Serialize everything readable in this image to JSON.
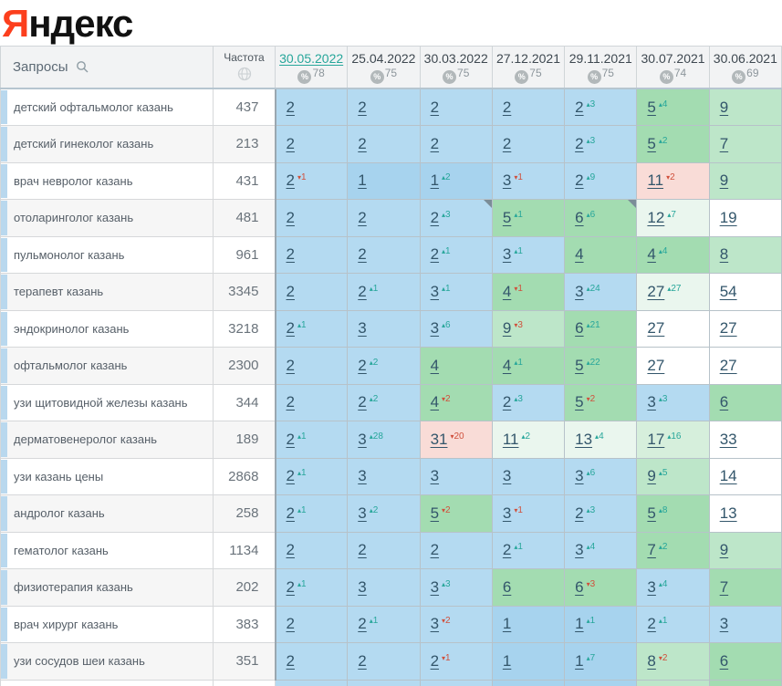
{
  "logo": {
    "ya": "Я",
    "rest": "ндекс"
  },
  "colors": {
    "brand_red": "#fc3f1d",
    "selected_date_teal": "#26a69a",
    "change_up": "#26a69a",
    "change_down": "#d0503c",
    "cell_blue": "#b4daf1",
    "cell_blue_top1": "#a7d3ee",
    "cell_green": "#a3dcb1",
    "cell_light_green": "#bde6c9",
    "cell_very_light_green": "#eaf6ee",
    "cell_pink": "#f9dcd7",
    "row_accent_blue": "#b9d8ee"
  },
  "table": {
    "queries_header": "Запросы",
    "frequency_header": "Частота",
    "percent_symbol": "%",
    "dates": [
      {
        "label": "30.05.2022",
        "percent": "78",
        "selected": true
      },
      {
        "label": "25.04.2022",
        "percent": "75",
        "selected": false
      },
      {
        "label": "30.03.2022",
        "percent": "75",
        "selected": false
      },
      {
        "label": "27.12.2021",
        "percent": "75",
        "selected": false
      },
      {
        "label": "29.11.2021",
        "percent": "75",
        "selected": false
      },
      {
        "label": "30.07.2021",
        "percent": "74",
        "selected": false
      },
      {
        "label": "30.06.2021",
        "percent": "69",
        "selected": false
      }
    ],
    "rows": [
      {
        "query": "детский офтальмолог казань",
        "frequency": "437",
        "cells": [
          {
            "pos": "2",
            "bg": "blue"
          },
          {
            "pos": "2",
            "bg": "blue"
          },
          {
            "pos": "2",
            "bg": "blue"
          },
          {
            "pos": "2",
            "bg": "blue"
          },
          {
            "pos": "2",
            "change": "3",
            "dir": "up",
            "bg": "blue"
          },
          {
            "pos": "5",
            "change": "4",
            "dir": "up",
            "bg": "green"
          },
          {
            "pos": "9",
            "bg": "lgreen"
          }
        ]
      },
      {
        "query": "детский гинеколог казань",
        "frequency": "213",
        "cells": [
          {
            "pos": "2",
            "bg": "blue"
          },
          {
            "pos": "2",
            "bg": "blue"
          },
          {
            "pos": "2",
            "bg": "blue"
          },
          {
            "pos": "2",
            "bg": "blue"
          },
          {
            "pos": "2",
            "change": "3",
            "dir": "up",
            "bg": "blue"
          },
          {
            "pos": "5",
            "change": "2",
            "dir": "up",
            "bg": "green"
          },
          {
            "pos": "7",
            "bg": "lgreen"
          }
        ]
      },
      {
        "query": "врач невролог казань",
        "frequency": "431",
        "cells": [
          {
            "pos": "2",
            "change": "1",
            "dir": "down",
            "bg": "blue"
          },
          {
            "pos": "1",
            "bg": "blue1"
          },
          {
            "pos": "1",
            "change": "2",
            "dir": "up",
            "bg": "blue1"
          },
          {
            "pos": "3",
            "change": "1",
            "dir": "down",
            "bg": "blue"
          },
          {
            "pos": "2",
            "change": "9",
            "dir": "up",
            "bg": "blue"
          },
          {
            "pos": "11",
            "change": "2",
            "dir": "down",
            "bg": "pink"
          },
          {
            "pos": "9",
            "bg": "lgreen"
          }
        ]
      },
      {
        "query": "отоларинголог казань",
        "frequency": "481",
        "cells": [
          {
            "pos": "2",
            "bg": "blue"
          },
          {
            "pos": "2",
            "bg": "blue"
          },
          {
            "pos": "2",
            "change": "3",
            "dir": "up",
            "bg": "blue",
            "note": true
          },
          {
            "pos": "5",
            "change": "1",
            "dir": "up",
            "bg": "green"
          },
          {
            "pos": "6",
            "change": "6",
            "dir": "up",
            "bg": "green",
            "note": true
          },
          {
            "pos": "12",
            "change": "7",
            "dir": "up",
            "bg": "vlgreen"
          },
          {
            "pos": "19",
            "bg": "white"
          }
        ]
      },
      {
        "query": "пульмонолог казань",
        "frequency": "961",
        "cells": [
          {
            "pos": "2",
            "bg": "blue"
          },
          {
            "pos": "2",
            "bg": "blue"
          },
          {
            "pos": "2",
            "change": "1",
            "dir": "up",
            "bg": "blue"
          },
          {
            "pos": "3",
            "change": "1",
            "dir": "up",
            "bg": "blue"
          },
          {
            "pos": "4",
            "bg": "green"
          },
          {
            "pos": "4",
            "change": "4",
            "dir": "up",
            "bg": "green"
          },
          {
            "pos": "8",
            "bg": "lgreen"
          }
        ]
      },
      {
        "query": "терапевт казань",
        "frequency": "3345",
        "cells": [
          {
            "pos": "2",
            "bg": "blue"
          },
          {
            "pos": "2",
            "change": "1",
            "dir": "up",
            "bg": "blue"
          },
          {
            "pos": "3",
            "change": "1",
            "dir": "up",
            "bg": "blue"
          },
          {
            "pos": "4",
            "change": "1",
            "dir": "down",
            "bg": "green"
          },
          {
            "pos": "3",
            "change": "24",
            "dir": "up",
            "bg": "blue"
          },
          {
            "pos": "27",
            "change": "27",
            "dir": "up",
            "bg": "vlgreen"
          },
          {
            "pos": "54",
            "bg": "white"
          }
        ]
      },
      {
        "query": "эндокринолог казань",
        "frequency": "3218",
        "cells": [
          {
            "pos": "2",
            "change": "1",
            "dir": "up",
            "bg": "blue"
          },
          {
            "pos": "3",
            "bg": "blue"
          },
          {
            "pos": "3",
            "change": "6",
            "dir": "up",
            "bg": "blue"
          },
          {
            "pos": "9",
            "change": "3",
            "dir": "down",
            "bg": "lgreen"
          },
          {
            "pos": "6",
            "change": "21",
            "dir": "up",
            "bg": "green"
          },
          {
            "pos": "27",
            "bg": "white"
          },
          {
            "pos": "27",
            "bg": "white"
          }
        ]
      },
      {
        "query": "офтальмолог казань",
        "frequency": "2300",
        "cells": [
          {
            "pos": "2",
            "bg": "blue"
          },
          {
            "pos": "2",
            "change": "2",
            "dir": "up",
            "bg": "blue"
          },
          {
            "pos": "4",
            "bg": "green"
          },
          {
            "pos": "4",
            "change": "1",
            "dir": "up",
            "bg": "green"
          },
          {
            "pos": "5",
            "change": "22",
            "dir": "up",
            "bg": "green"
          },
          {
            "pos": "27",
            "bg": "white"
          },
          {
            "pos": "27",
            "bg": "white"
          }
        ]
      },
      {
        "query": "узи щитовидной железы казань",
        "frequency": "344",
        "cells": [
          {
            "pos": "2",
            "bg": "blue"
          },
          {
            "pos": "2",
            "change": "2",
            "dir": "up",
            "bg": "blue"
          },
          {
            "pos": "4",
            "change": "2",
            "dir": "down",
            "bg": "green"
          },
          {
            "pos": "2",
            "change": "3",
            "dir": "up",
            "bg": "blue"
          },
          {
            "pos": "5",
            "change": "2",
            "dir": "down",
            "bg": "green"
          },
          {
            "pos": "3",
            "change": "3",
            "dir": "up",
            "bg": "blue"
          },
          {
            "pos": "6",
            "bg": "green"
          }
        ]
      },
      {
        "query": "дерматовенеролог казань",
        "frequency": "189",
        "cells": [
          {
            "pos": "2",
            "change": "1",
            "dir": "up",
            "bg": "blue"
          },
          {
            "pos": "3",
            "change": "28",
            "dir": "up",
            "bg": "blue"
          },
          {
            "pos": "31",
            "change": "20",
            "dir": "down",
            "bg": "pink"
          },
          {
            "pos": "11",
            "change": "2",
            "dir": "up",
            "bg": "vlgreen"
          },
          {
            "pos": "13",
            "change": "4",
            "dir": "up",
            "bg": "vlgreen"
          },
          {
            "pos": "17",
            "change": "16",
            "dir": "up",
            "bg": "lgreen2"
          },
          {
            "pos": "33",
            "bg": "white"
          }
        ]
      },
      {
        "query": "узи казань цены",
        "frequency": "2868",
        "cells": [
          {
            "pos": "2",
            "change": "1",
            "dir": "up",
            "bg": "blue"
          },
          {
            "pos": "3",
            "bg": "blue"
          },
          {
            "pos": "3",
            "bg": "blue"
          },
          {
            "pos": "3",
            "bg": "blue"
          },
          {
            "pos": "3",
            "change": "6",
            "dir": "up",
            "bg": "blue"
          },
          {
            "pos": "9",
            "change": "5",
            "dir": "up",
            "bg": "lgreen"
          },
          {
            "pos": "14",
            "bg": "white"
          }
        ]
      },
      {
        "query": "андролог казань",
        "frequency": "258",
        "cells": [
          {
            "pos": "2",
            "change": "1",
            "dir": "up",
            "bg": "blue"
          },
          {
            "pos": "3",
            "change": "2",
            "dir": "up",
            "bg": "blue"
          },
          {
            "pos": "5",
            "change": "2",
            "dir": "down",
            "bg": "green"
          },
          {
            "pos": "3",
            "change": "1",
            "dir": "down",
            "bg": "blue"
          },
          {
            "pos": "2",
            "change": "3",
            "dir": "up",
            "bg": "blue"
          },
          {
            "pos": "5",
            "change": "8",
            "dir": "up",
            "bg": "green"
          },
          {
            "pos": "13",
            "bg": "white"
          }
        ]
      },
      {
        "query": "гематолог казань",
        "frequency": "1134",
        "cells": [
          {
            "pos": "2",
            "bg": "blue"
          },
          {
            "pos": "2",
            "bg": "blue"
          },
          {
            "pos": "2",
            "bg": "blue"
          },
          {
            "pos": "2",
            "change": "1",
            "dir": "up",
            "bg": "blue"
          },
          {
            "pos": "3",
            "change": "4",
            "dir": "up",
            "bg": "blue"
          },
          {
            "pos": "7",
            "change": "2",
            "dir": "up",
            "bg": "green"
          },
          {
            "pos": "9",
            "bg": "lgreen"
          }
        ]
      },
      {
        "query": "физиотерапия казань",
        "frequency": "202",
        "cells": [
          {
            "pos": "2",
            "change": "1",
            "dir": "up",
            "bg": "blue"
          },
          {
            "pos": "3",
            "bg": "blue"
          },
          {
            "pos": "3",
            "change": "3",
            "dir": "up",
            "bg": "blue"
          },
          {
            "pos": "6",
            "bg": "green"
          },
          {
            "pos": "6",
            "change": "3",
            "dir": "down",
            "bg": "green"
          },
          {
            "pos": "3",
            "change": "4",
            "dir": "up",
            "bg": "blue"
          },
          {
            "pos": "7",
            "bg": "green"
          }
        ]
      },
      {
        "query": "врач хирург казань",
        "frequency": "383",
        "cells": [
          {
            "pos": "2",
            "bg": "blue"
          },
          {
            "pos": "2",
            "change": "1",
            "dir": "up",
            "bg": "blue"
          },
          {
            "pos": "3",
            "change": "2",
            "dir": "down",
            "bg": "blue"
          },
          {
            "pos": "1",
            "bg": "blue1"
          },
          {
            "pos": "1",
            "change": "1",
            "dir": "up",
            "bg": "blue1"
          },
          {
            "pos": "2",
            "change": "1",
            "dir": "up",
            "bg": "blue"
          },
          {
            "pos": "3",
            "bg": "blue"
          }
        ]
      },
      {
        "query": "узи сосудов шеи казань",
        "frequency": "351",
        "cells": [
          {
            "pos": "2",
            "bg": "blue"
          },
          {
            "pos": "2",
            "bg": "blue"
          },
          {
            "pos": "2",
            "change": "1",
            "dir": "down",
            "bg": "blue"
          },
          {
            "pos": "1",
            "bg": "blue1"
          },
          {
            "pos": "1",
            "change": "7",
            "dir": "up",
            "bg": "blue1"
          },
          {
            "pos": "8",
            "change": "2",
            "dir": "down",
            "bg": "lgreen"
          },
          {
            "pos": "6",
            "bg": "green"
          }
        ]
      }
    ],
    "next_row_sliver": [
      "blue",
      "blue",
      "blue",
      "blue1",
      "blue1",
      "lgreen",
      "green"
    ]
  }
}
